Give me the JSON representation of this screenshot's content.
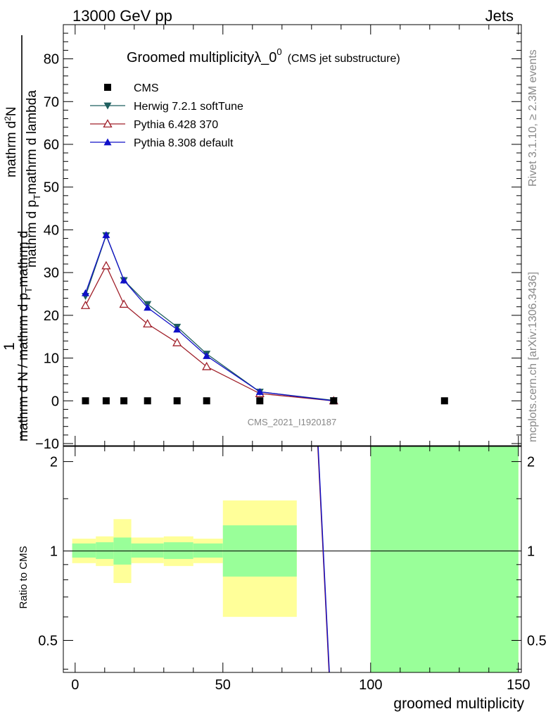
{
  "header": {
    "left_label": "13000 GeV pp",
    "right_label": "Jets"
  },
  "side_labels": {
    "rivet": "Rivet 3.1.10, ≥ 2.3M events",
    "mcplots": "mcplots.cern.ch [arXiv:1306.3436]"
  },
  "watermark": "CMS_2021_I1920187",
  "colors": {
    "cms": "#000000",
    "herwig": "#1f5f5f",
    "pythia6": "#a0202a",
    "pythia8": "#1010c8",
    "band_inner": "#99ff99",
    "band_outer": "#ffff99"
  },
  "chart_data": [
    {
      "type": "line",
      "panel": "main",
      "title": "Groomed multiplicityλ_0",
      "title_superscript": "0",
      "title_suffix": "(CMS jet substructure)",
      "ylabel_top": "1",
      "ylabel_bottom": "mathrm d N / mathrm d p",
      "ylabel_bottom_sub": "T",
      "ylabel_bottom_rest": "mathrm d",
      "ylabel_numerator": "mathrm d",
      "ylabel_numerator_sup": "2",
      "ylabel_numerator_rest": "N",
      "ylabel_denominator": "mathrm d p",
      "ylabel_denominator_sub": "T",
      "ylabel_denominator_rest": "mathrm d lambda",
      "xlim": [
        -4,
        151
      ],
      "ylim": [
        -10.5,
        88
      ],
      "yticks": [
        -10,
        0,
        10,
        20,
        30,
        40,
        50,
        60,
        70,
        80
      ],
      "ytick_labels": [
        "−10",
        "0",
        "10",
        "20",
        "30",
        "40",
        "50",
        "60",
        "70",
        "80"
      ],
      "legend_position": "top-left",
      "series": [
        {
          "name": "CMS",
          "key": "cms",
          "marker": "square",
          "x": [
            3.5,
            10.5,
            16.5,
            24.5,
            34.5,
            44.5,
            62.5,
            87.5,
            125
          ],
          "y": [
            0,
            0,
            0,
            0,
            0,
            0,
            0,
            0,
            0
          ]
        },
        {
          "name": "Herwig 7.2.1 softTune",
          "key": "herwig",
          "marker": "triangle-down",
          "x": [
            3.5,
            10.5,
            16.5,
            24.5,
            34.5,
            44.5,
            62.5,
            87.5
          ],
          "y": [
            24.5,
            38.7,
            28.2,
            22.6,
            17.3,
            11.0,
            2.1,
            0.1
          ]
        },
        {
          "name": "Pythia 6.428 370",
          "key": "pythia6",
          "marker": "triangle-up-open",
          "x": [
            3.5,
            10.5,
            16.5,
            24.5,
            34.5,
            44.5,
            62.5,
            87.5
          ],
          "y": [
            22.3,
            31.6,
            22.6,
            18.0,
            13.6,
            8.0,
            1.7,
            0.0
          ]
        },
        {
          "name": "Pythia 8.308 default",
          "key": "pythia8",
          "marker": "triangle-up",
          "x": [
            3.5,
            10.5,
            16.5,
            24.5,
            34.5,
            44.5,
            62.5,
            87.5
          ],
          "y": [
            25.2,
            38.8,
            28.2,
            21.8,
            16.7,
            10.5,
            2.1,
            0.0
          ]
        }
      ]
    },
    {
      "type": "area",
      "panel": "ratio",
      "ylabel": "Ratio to CMS",
      "xlabel": "groomed multiplicity",
      "xlim": [
        -4,
        151
      ],
      "ylim": [
        0.39,
        2.25
      ],
      "yscale": "log",
      "xticks": [
        0,
        50,
        100,
        150
      ],
      "xtick_labels": [
        "0",
        "50",
        "100",
        "150"
      ],
      "yticks": [
        0.5,
        1,
        2
      ],
      "ytick_labels": [
        "0.5",
        "1",
        "2"
      ],
      "bands": [
        {
          "x0": -1,
          "x1": 7,
          "inner": [
            0.95,
            1.06
          ],
          "outer": [
            0.91,
            1.1
          ]
        },
        {
          "x0": 7,
          "x1": 13,
          "inner": [
            0.94,
            1.07
          ],
          "outer": [
            0.89,
            1.12
          ]
        },
        {
          "x0": 13,
          "x1": 19,
          "inner": [
            0.9,
            1.11
          ],
          "outer": [
            0.78,
            1.28
          ]
        },
        {
          "x0": 19,
          "x1": 30,
          "inner": [
            0.95,
            1.06
          ],
          "outer": [
            0.91,
            1.11
          ]
        },
        {
          "x0": 30,
          "x1": 40,
          "inner": [
            0.94,
            1.07
          ],
          "outer": [
            0.89,
            1.12
          ]
        },
        {
          "x0": 40,
          "x1": 50,
          "inner": [
            0.95,
            1.06
          ],
          "outer": [
            0.91,
            1.1
          ]
        },
        {
          "x0": 50,
          "x1": 75,
          "inner": [
            0.82,
            1.22
          ],
          "outer": [
            0.6,
            1.48
          ]
        },
        {
          "x0": 100,
          "x1": 150,
          "inner": [
            0.3,
            3.0
          ],
          "outer": [
            0.3,
            3.0
          ]
        }
      ],
      "mc_lines": [
        {
          "key": "pythia6",
          "x": [
            81.5,
            86.5
          ],
          "y": [
            3.0,
            0.3
          ]
        },
        {
          "key": "pythia8",
          "x": [
            81.6,
            86.6
          ],
          "y": [
            3.0,
            0.3
          ]
        }
      ]
    }
  ]
}
